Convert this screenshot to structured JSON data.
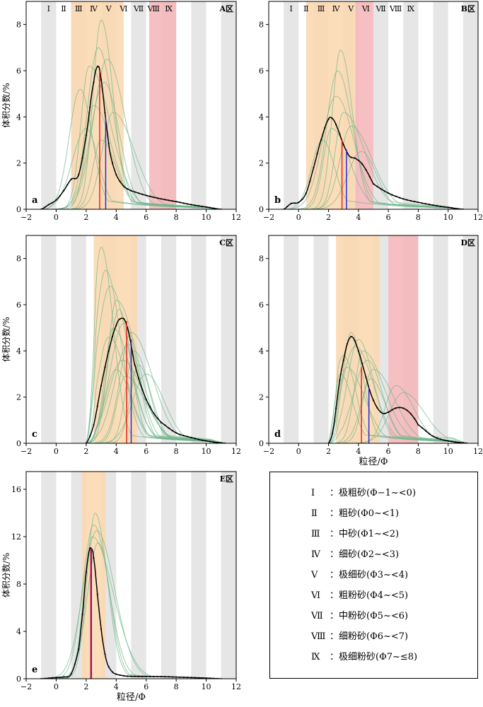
{
  "colors": {
    "grey_band": "#e6e6e6",
    "orange_band": "#fbd7ae",
    "pink_band": "#f5b4b6",
    "sample_curve": "#6fb58a",
    "mean_curve": "#000000",
    "red_line": "#e8211f",
    "blue_line": "#2b2bd6"
  },
  "panel_a": {
    "letter": "a",
    "area": "A区",
    "ylabel": "体积分数/%",
    "classes": [
      "Ⅰ",
      "Ⅱ",
      "Ⅲ",
      "Ⅳ",
      "Ⅴ",
      "Ⅵ",
      "Ⅶ",
      "Ⅷ",
      "Ⅸ"
    ],
    "xticks": [
      "−2",
      "0",
      "2",
      "4",
      "6",
      "8",
      "10",
      "12"
    ],
    "yticks": [
      "0",
      "2",
      "4",
      "6",
      "8"
    ]
  },
  "panel_b": {
    "letter": "b",
    "area": "B区",
    "classes": [
      "Ⅰ",
      "Ⅱ",
      "Ⅲ",
      "Ⅳ",
      "Ⅴ",
      "Ⅵ",
      "Ⅶ",
      "Ⅷ",
      "Ⅸ"
    ],
    "xticks": [
      "−2",
      "0",
      "2",
      "4",
      "6",
      "8",
      "10",
      "12"
    ],
    "yticks": [
      "0",
      "2",
      "4",
      "6",
      "8"
    ]
  },
  "panel_c": {
    "letter": "c",
    "area": "C区",
    "ylabel": "体积分数/%",
    "xticks": [
      "−2",
      "0",
      "2",
      "4",
      "6",
      "8",
      "10",
      "12"
    ],
    "yticks": [
      "0",
      "2",
      "4",
      "6",
      "8"
    ]
  },
  "panel_d": {
    "letter": "d",
    "area": "D区",
    "xlabel": "粒径/Φ",
    "xticks": [
      "−2",
      "0",
      "2",
      "4",
      "6",
      "8",
      "10",
      "12"
    ],
    "yticks": [
      "0",
      "2",
      "4",
      "6",
      "8"
    ]
  },
  "panel_e": {
    "letter": "e",
    "area": "E区",
    "ylabel": "体积分数/%",
    "xlabel": "粒径/Φ",
    "xticks": [
      "−2",
      "0",
      "2",
      "4",
      "6",
      "8",
      "10",
      "12"
    ],
    "yticks": [
      "0",
      "4",
      "8",
      "12",
      "16"
    ]
  },
  "legend": [
    {
      "roman": "Ⅰ",
      "text": "：极粗砂(Φ−1~<0)"
    },
    {
      "roman": "Ⅱ",
      "text": "：粗砂(Φ0~<1)"
    },
    {
      "roman": "Ⅲ",
      "text": "：中砂(Φ1~<2)"
    },
    {
      "roman": "Ⅳ",
      "text": "：细砂(Φ2~<3)"
    },
    {
      "roman": "Ⅴ",
      "text": "：极细砂(Φ3~<4)"
    },
    {
      "roman": "Ⅵ",
      "text": "：粗粉砂(Φ4~<5)"
    },
    {
      "roman": "Ⅶ",
      "text": "：中粉砂(Φ5~<6)"
    },
    {
      "roman": "Ⅷ",
      "text": "：细粉砂(Φ6~<7)"
    },
    {
      "roman": "Ⅸ",
      "text": "：极细粉砂(Φ7~≤8)"
    }
  ],
  "chart_data": [
    {
      "type": "line",
      "panel": "a",
      "title": "A区",
      "ylabel": "体积分数/%",
      "xlim": [
        -2,
        12
      ],
      "ylim": [
        0,
        9
      ],
      "orange_band": [
        1,
        4.5
      ],
      "pink_band": [
        6.2,
        8
      ],
      "mean_series": {
        "x": [
          -1,
          -0.5,
          0,
          0.5,
          1,
          1.5,
          2,
          2.5,
          2.8,
          3,
          3.3,
          3.6,
          4,
          4.5,
          5,
          6,
          7,
          8,
          9,
          10,
          11
        ],
        "y": [
          0,
          0.2,
          0.4,
          0.8,
          1.3,
          1.5,
          3.2,
          5.5,
          6.2,
          5.6,
          3.9,
          2.4,
          1.5,
          1.0,
          0.8,
          0.6,
          0.45,
          0.33,
          0.2,
          0.1,
          0
        ]
      },
      "red_line_x": 2.9,
      "red_line_y": 6.0,
      "blue_line_x": 3.3,
      "blue_line_y": 4.0,
      "sample_peaks": [
        [
          3,
          8.2
        ],
        [
          2.8,
          7
        ],
        [
          3.4,
          6.5
        ],
        [
          2.2,
          6.2
        ],
        [
          1.6,
          5.2
        ],
        [
          3.2,
          5.5
        ],
        [
          2.5,
          4.5
        ],
        [
          3.8,
          4.2
        ],
        [
          2,
          3.5
        ],
        [
          3,
          3
        ]
      ],
      "sample_spread": [
        -1,
        11
      ]
    },
    {
      "type": "line",
      "panel": "b",
      "title": "B区",
      "xlim": [
        -2,
        12
      ],
      "ylim": [
        0,
        9
      ],
      "orange_band": [
        0.5,
        3.8
      ],
      "pink_band": [
        3.8,
        5
      ],
      "mean_series": {
        "x": [
          -1,
          -0.5,
          0,
          0.5,
          1,
          1.5,
          2,
          2.3,
          2.6,
          3,
          3.4,
          3.8,
          4.2,
          4.6,
          5,
          6,
          7,
          8,
          9,
          10,
          11
        ],
        "y": [
          0,
          0.25,
          0.3,
          0.7,
          1.8,
          3.0,
          3.9,
          3.9,
          3.5,
          2.8,
          2.3,
          2.2,
          2.0,
          1.6,
          1.1,
          0.7,
          0.45,
          0.3,
          0.18,
          0.08,
          0
        ]
      },
      "red_line_x": 2.9,
      "red_line_y": 3.0,
      "blue_line_x": 3.2,
      "blue_line_y": 2.6,
      "sample_peaks": [
        [
          2.8,
          6.9
        ],
        [
          2.6,
          6.0
        ],
        [
          2.5,
          4.9
        ],
        [
          3,
          4.2
        ],
        [
          1.6,
          3.0
        ],
        [
          4.2,
          2.5
        ],
        [
          2.2,
          3.5
        ],
        [
          3.5,
          3.6
        ]
      ],
      "sample_spread": [
        -1,
        11
      ]
    },
    {
      "type": "line",
      "panel": "c",
      "title": "C区",
      "ylabel": "体积分数/%",
      "xlim": [
        -2,
        12
      ],
      "ylim": [
        0,
        9
      ],
      "orange_band": [
        2.5,
        5.4
      ],
      "mean_series": {
        "x": [
          2,
          2.5,
          3,
          3.5,
          4,
          4.3,
          4.6,
          4.9,
          5.2,
          5.6,
          6,
          6.5,
          7,
          8,
          9,
          10,
          11,
          11.3
        ],
        "y": [
          0,
          0.8,
          2.5,
          4.0,
          5.1,
          5.4,
          5.3,
          4.6,
          3.5,
          2.6,
          1.9,
          1.3,
          0.9,
          0.45,
          0.25,
          0.1,
          0.02,
          0
        ]
      },
      "red_line_x": 4.7,
      "red_line_y": 5.3,
      "blue_line_x": 5.0,
      "blue_line_y": 4.5,
      "sample_peaks": [
        [
          3,
          8.5
        ],
        [
          3.3,
          7.5
        ],
        [
          3.6,
          6.8
        ],
        [
          4,
          6.2
        ],
        [
          4.2,
          5.8
        ],
        [
          4.5,
          5.2
        ],
        [
          3.8,
          5
        ],
        [
          5,
          4.8
        ],
        [
          4.8,
          4.3
        ],
        [
          5.2,
          4
        ],
        [
          3.5,
          4.6
        ],
        [
          4.4,
          3.6
        ],
        [
          5.5,
          3.4
        ],
        [
          4,
          3.2
        ],
        [
          6,
          3.0
        ],
        [
          4.6,
          2.9
        ]
      ],
      "sample_spread": [
        2,
        11.3
      ]
    },
    {
      "type": "line",
      "panel": "d",
      "title": "D区",
      "xlabel": "粒径/Φ",
      "xlim": [
        -2,
        12
      ],
      "ylim": [
        0,
        9
      ],
      "orange_band": [
        2.5,
        5.4
      ],
      "pink_band": [
        6,
        8
      ],
      "mean_series": {
        "x": [
          2,
          2.3,
          2.7,
          3,
          3.3,
          3.6,
          4,
          4.4,
          4.8,
          5.2,
          5.6,
          6,
          6.4,
          6.8,
          7.2,
          7.6,
          8,
          9,
          10,
          11,
          11.3
        ],
        "y": [
          0,
          0.6,
          2.5,
          3.6,
          4.4,
          4.6,
          4.0,
          3.1,
          2.2,
          1.6,
          1.3,
          1.35,
          1.5,
          1.55,
          1.45,
          1.2,
          0.8,
          0.3,
          0.1,
          0.02,
          0
        ]
      },
      "red_line_x": 4.2,
      "red_line_y": 3.3,
      "blue_line_x": 4.7,
      "blue_line_y": 2.4,
      "sample_peaks": [
        [
          3.5,
          4.8
        ],
        [
          4,
          4.5
        ],
        [
          3.8,
          4.2
        ],
        [
          4.3,
          4
        ],
        [
          3,
          3.8
        ],
        [
          4.6,
          3.6
        ],
        [
          3.2,
          3.3
        ],
        [
          5,
          3.2
        ],
        [
          2.8,
          3.0
        ],
        [
          4.8,
          2.8
        ],
        [
          6.5,
          2.5
        ],
        [
          7,
          2.2
        ]
      ],
      "sample_spread": [
        2,
        11.3
      ]
    },
    {
      "type": "line",
      "panel": "e",
      "title": "E区",
      "ylabel": "体积分数/%",
      "xlabel": "粒径/Φ",
      "xlim": [
        -2,
        12
      ],
      "ylim": [
        0,
        17.5
      ],
      "orange_band": [
        1.7,
        3.3
      ],
      "mean_series": {
        "x": [
          -1,
          0,
          0.5,
          1,
          1.5,
          1.8,
          2,
          2.2,
          2.35,
          2.5,
          2.8,
          3.1,
          3.4,
          3.8,
          4.5,
          5,
          6,
          7,
          8,
          9,
          10,
          11
        ],
        "y": [
          0,
          0.1,
          0.15,
          0.4,
          2.5,
          6.0,
          9.0,
          10.8,
          11.0,
          10.2,
          6.5,
          3.2,
          1.3,
          0.5,
          0.25,
          0.2,
          0.18,
          0.18,
          0.14,
          0.1,
          0.05,
          0
        ]
      },
      "red_line_x": 2.3,
      "red_line_y": 11.0,
      "blue_line_x": 2.35,
      "blue_line_y": 11.0,
      "sample_peaks": [
        [
          2.6,
          14
        ],
        [
          2.5,
          13
        ],
        [
          2.7,
          12.5
        ],
        [
          2.4,
          12
        ],
        [
          2.8,
          11.5
        ]
      ],
      "sample_spread": [
        -1,
        11
      ]
    }
  ]
}
